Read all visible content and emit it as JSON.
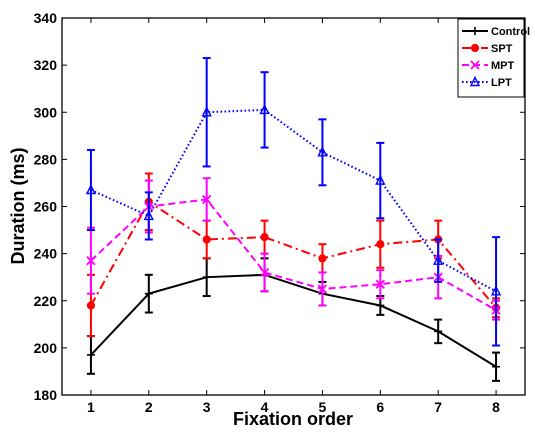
{
  "chart_data": {
    "type": "line",
    "xlabel": "Fixation order",
    "ylabel": "Duration (ms)",
    "x": [
      1,
      2,
      3,
      4,
      5,
      6,
      7,
      8
    ],
    "xticks": [
      "1",
      "2",
      "3",
      "4",
      "5",
      "6",
      "7",
      "8"
    ],
    "xlim": [
      0.5,
      8.5
    ],
    "ylim": [
      180,
      340
    ],
    "yticks": [
      "180",
      "200",
      "220",
      "240",
      "260",
      "280",
      "300",
      "320",
      "340"
    ],
    "grid": false,
    "legend_position": "top-right",
    "series": [
      {
        "name": "Control",
        "color": "#000000",
        "style": "solid",
        "marker": "plus",
        "values": [
          197,
          223,
          230,
          231,
          223,
          218,
          207,
          192
        ],
        "error": [
          8,
          8,
          8,
          7,
          5,
          4,
          5,
          6
        ]
      },
      {
        "name": "SPT",
        "color": "#ff0000",
        "style": "dashdot",
        "marker": "dot",
        "values": [
          218,
          262,
          246,
          247,
          238,
          244,
          246,
          217
        ],
        "error": [
          13,
          12,
          8,
          7,
          6,
          10,
          8,
          4
        ]
      },
      {
        "name": "MPT",
        "color": "#ff00ff",
        "style": "dashed",
        "marker": "x",
        "values": [
          237,
          260,
          263,
          232,
          225,
          227,
          230,
          216
        ],
        "error": [
          14,
          11,
          9,
          8,
          7,
          6,
          9,
          4
        ]
      },
      {
        "name": "LPT",
        "color": "#0000ff",
        "style": "dotted",
        "marker": "triangle",
        "values": [
          267,
          256,
          300,
          301,
          283,
          271,
          237,
          224
        ],
        "error": [
          17,
          10,
          23,
          16,
          14,
          16,
          9,
          23
        ]
      }
    ]
  }
}
